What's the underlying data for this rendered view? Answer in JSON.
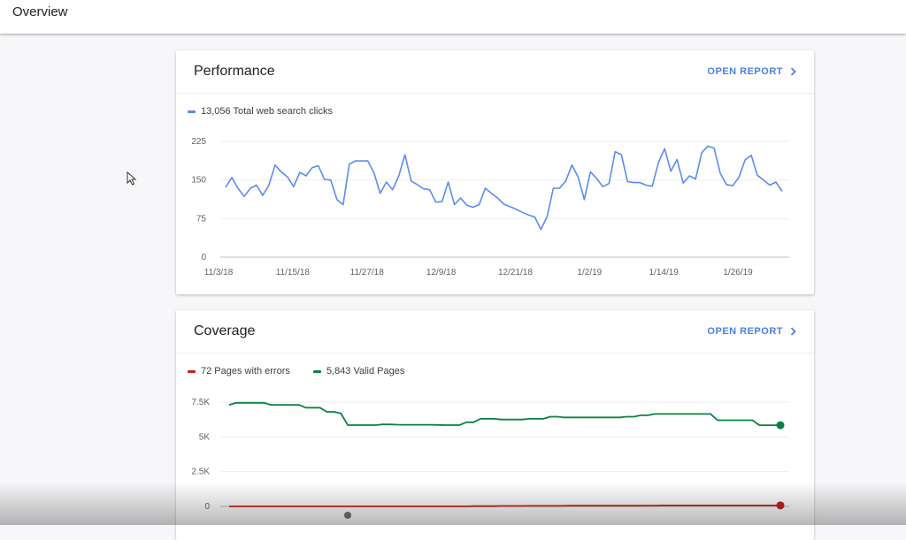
{
  "header": {
    "title": "Overview"
  },
  "performance": {
    "title": "Performance",
    "open_report": "OPEN REPORT",
    "legend_label": "13,056 Total web search clicks",
    "colors": {
      "line": "#5b8cf0"
    },
    "chart_data": {
      "type": "line",
      "title": "",
      "xlabel": "",
      "ylabel": "",
      "ylim": [
        0,
        225
      ],
      "y_ticks": [
        "225",
        "150",
        "75",
        "0"
      ],
      "y_tick_values": [
        225,
        150,
        75,
        0
      ],
      "x_tick_labels": [
        "11/3/18",
        "11/15/18",
        "11/27/18",
        "12/9/18",
        "12/21/18",
        "1/2/19",
        "1/14/19",
        "1/26/19"
      ],
      "x_tick_positions": [
        0,
        12,
        24,
        36,
        48,
        60,
        72,
        84
      ],
      "grid": true,
      "series": [
        {
          "name": "Total web search clicks",
          "values": [
            136,
            155,
            134,
            118,
            134,
            140,
            120,
            140,
            179,
            166,
            156,
            137,
            165,
            158,
            174,
            178,
            151,
            150,
            112,
            102,
            181,
            187,
            187,
            187,
            164,
            124,
            146,
            131,
            158,
            199,
            148,
            141,
            133,
            131,
            107,
            108,
            146,
            102,
            115,
            101,
            97,
            102,
            134,
            124,
            115,
            103,
            98,
            93,
            87,
            82,
            78,
            54,
            79,
            134,
            134,
            148,
            179,
            156,
            112,
            166,
            153,
            137,
            143,
            205,
            199,
            147,
            145,
            145,
            140,
            138,
            184,
            211,
            167,
            190,
            144,
            158,
            152,
            203,
            216,
            212,
            163,
            141,
            139,
            155,
            189,
            198,
            159,
            150,
            140,
            146,
            128
          ]
        }
      ]
    }
  },
  "coverage": {
    "title": "Coverage",
    "open_report": "OPEN REPORT",
    "legend": [
      {
        "label": "72 Pages with errors",
        "color": "#c5221f"
      },
      {
        "label": "5,843 Valid Pages",
        "color": "#0b8043"
      }
    ],
    "chart_data": {
      "type": "line",
      "title": "",
      "xlabel": "",
      "ylabel": "",
      "ylim": [
        0,
        7500
      ],
      "y_ticks": [
        "7.5K",
        "5K",
        "2.5K",
        "0"
      ],
      "y_tick_values": [
        7500,
        5000,
        2500,
        0
      ],
      "grid": true,
      "series": [
        {
          "name": "Valid Pages",
          "color": "#0b8043",
          "values": [
            7300,
            7450,
            7450,
            7450,
            7450,
            7450,
            7300,
            7300,
            7300,
            7300,
            7300,
            7100,
            7100,
            7100,
            6800,
            6800,
            6700,
            5850,
            5850,
            5850,
            5850,
            5850,
            5900,
            5900,
            5880,
            5870,
            5870,
            5870,
            5870,
            5870,
            5860,
            5850,
            5850,
            5850,
            6050,
            6050,
            6300,
            6300,
            6300,
            6250,
            6250,
            6250,
            6250,
            6300,
            6300,
            6300,
            6450,
            6450,
            6400,
            6400,
            6400,
            6400,
            6400,
            6400,
            6400,
            6400,
            6400,
            6450,
            6450,
            6550,
            6550,
            6650,
            6650,
            6650,
            6650,
            6650,
            6650,
            6650,
            6650,
            6650,
            6200,
            6200,
            6200,
            6200,
            6200,
            6200,
            5843,
            5843,
            5843,
            5843
          ]
        },
        {
          "name": "Pages with errors",
          "color": "#c5221f",
          "values": [
            0,
            0,
            0,
            0,
            0,
            0,
            0,
            0,
            0,
            0,
            0,
            0,
            0,
            0,
            0,
            0,
            0,
            0,
            0,
            0,
            0,
            0,
            0,
            0,
            0,
            0,
            0,
            0,
            0,
            0,
            0,
            0,
            0,
            0,
            0,
            20,
            20,
            20,
            20,
            30,
            30,
            30,
            30,
            40,
            40,
            40,
            40,
            40,
            40,
            50,
            50,
            50,
            50,
            50,
            50,
            50,
            50,
            50,
            50,
            50,
            60,
            60,
            72,
            72,
            72,
            72,
            72,
            72,
            72,
            72,
            72,
            72,
            72,
            72,
            72,
            72,
            72,
            72,
            72,
            72
          ]
        }
      ]
    }
  }
}
